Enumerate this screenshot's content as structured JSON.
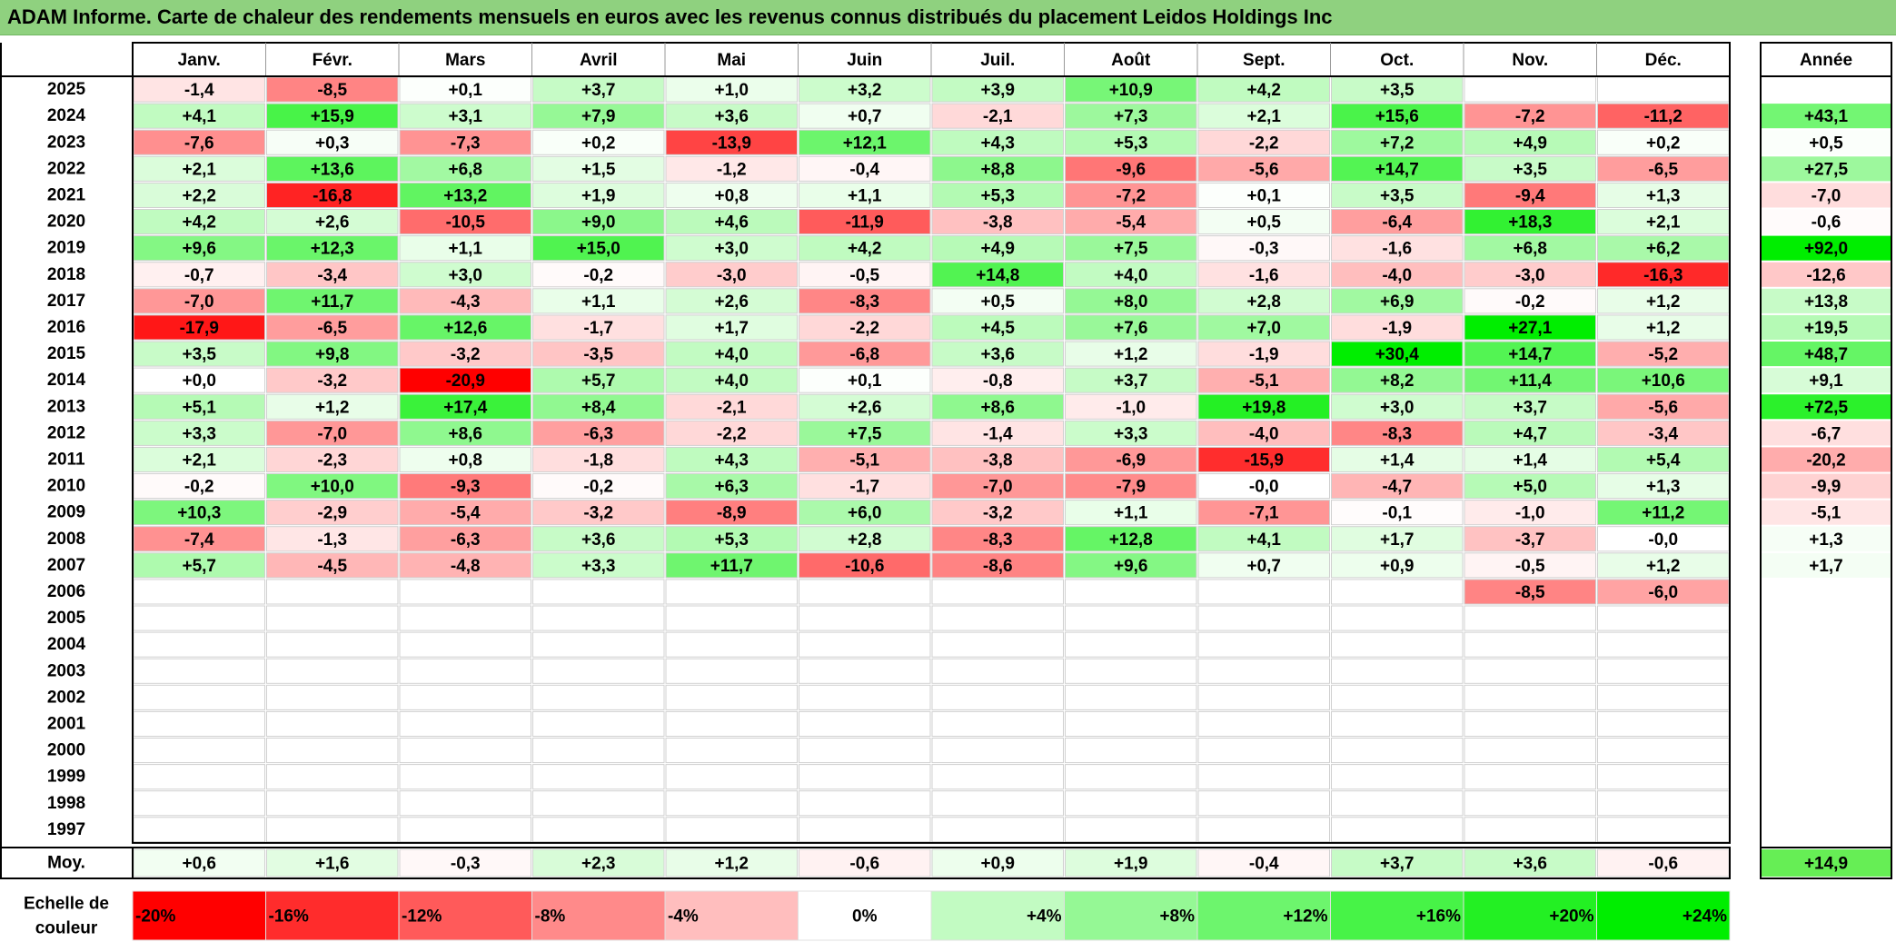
{
  "title": "ADAM Informe. Carte de chaleur des rendements mensuels en euros avec les revenus connus distribués du placement Leidos Holdings Inc",
  "chart_data": {
    "type": "heatmap",
    "months": [
      "Janv.",
      "Févr.",
      "Mars",
      "Avril",
      "Mai",
      "Juin",
      "Juil.",
      "Août",
      "Sept.",
      "Oct.",
      "Nov.",
      "Déc."
    ],
    "year_header": "Année",
    "rows": [
      {
        "year": "2025",
        "values": [
          "-1,4",
          "-8,5",
          "+0,1",
          "+3,7",
          "+1,0",
          "+3,2",
          "+3,9",
          "+10,9",
          "+4,2",
          "+3,5",
          "",
          ""
        ],
        "annual": ""
      },
      {
        "year": "2024",
        "values": [
          "+4,1",
          "+15,9",
          "+3,1",
          "+7,9",
          "+3,6",
          "+0,7",
          "-2,1",
          "+7,3",
          "+2,1",
          "+15,6",
          "-7,2",
          "-11,2"
        ],
        "annual": "+43,1"
      },
      {
        "year": "2023",
        "values": [
          "-7,6",
          "+0,3",
          "-7,3",
          "+0,2",
          "-13,9",
          "+12,1",
          "+4,3",
          "+5,3",
          "-2,2",
          "+7,2",
          "+4,9",
          "+0,2"
        ],
        "annual": "+0,5"
      },
      {
        "year": "2022",
        "values": [
          "+2,1",
          "+13,6",
          "+6,8",
          "+1,5",
          "-1,2",
          "-0,4",
          "+8,8",
          "-9,6",
          "-5,6",
          "+14,7",
          "+3,5",
          "-6,5"
        ],
        "annual": "+27,5"
      },
      {
        "year": "2021",
        "values": [
          "+2,2",
          "-16,8",
          "+13,2",
          "+1,9",
          "+0,8",
          "+1,1",
          "+5,3",
          "-7,2",
          "+0,1",
          "+3,5",
          "-9,4",
          "+1,3"
        ],
        "annual": "-7,0"
      },
      {
        "year": "2020",
        "values": [
          "+4,2",
          "+2,6",
          "-10,5",
          "+9,0",
          "+4,6",
          "-11,9",
          "-3,8",
          "-5,4",
          "+0,5",
          "-6,4",
          "+18,3",
          "+2,1"
        ],
        "annual": "-0,6"
      },
      {
        "year": "2019",
        "values": [
          "+9,6",
          "+12,3",
          "+1,1",
          "+15,0",
          "+3,0",
          "+4,2",
          "+4,9",
          "+7,5",
          "-0,3",
          "-1,6",
          "+6,8",
          "+6,2"
        ],
        "annual": "+92,0"
      },
      {
        "year": "2018",
        "values": [
          "-0,7",
          "-3,4",
          "+3,0",
          "-0,2",
          "-3,0",
          "-0,5",
          "+14,8",
          "+4,0",
          "-1,6",
          "-4,0",
          "-3,0",
          "-16,3"
        ],
        "annual": "-12,6"
      },
      {
        "year": "2017",
        "values": [
          "-7,0",
          "+11,7",
          "-4,3",
          "+1,1",
          "+2,6",
          "-8,3",
          "+0,5",
          "+8,0",
          "+2,8",
          "+6,9",
          "-0,2",
          "+1,2"
        ],
        "annual": "+13,8"
      },
      {
        "year": "2016",
        "values": [
          "-17,9",
          "-6,5",
          "+12,6",
          "-1,7",
          "+1,7",
          "-2,2",
          "+4,5",
          "+7,6",
          "+7,0",
          "-1,9",
          "+27,1",
          "+1,2"
        ],
        "annual": "+19,5"
      },
      {
        "year": "2015",
        "values": [
          "+3,5",
          "+9,8",
          "-3,2",
          "-3,5",
          "+4,0",
          "-6,8",
          "+3,6",
          "+1,2",
          "-1,9",
          "+30,4",
          "+14,7",
          "-5,2"
        ],
        "annual": "+48,7"
      },
      {
        "year": "2014",
        "values": [
          "+0,0",
          "-3,2",
          "-20,9",
          "+5,7",
          "+4,0",
          "+0,1",
          "-0,8",
          "+3,7",
          "-5,1",
          "+8,2",
          "+11,4",
          "+10,6"
        ],
        "annual": "+9,1"
      },
      {
        "year": "2013",
        "values": [
          "+5,1",
          "+1,2",
          "+17,4",
          "+8,4",
          "-2,1",
          "+2,6",
          "+8,6",
          "-1,0",
          "+19,8",
          "+3,0",
          "+3,7",
          "-5,6"
        ],
        "annual": "+72,5"
      },
      {
        "year": "2012",
        "values": [
          "+3,3",
          "-7,0",
          "+8,6",
          "-6,3",
          "-2,2",
          "+7,5",
          "-1,4",
          "+3,3",
          "-4,0",
          "-8,3",
          "+4,7",
          "-3,4"
        ],
        "annual": "-6,7"
      },
      {
        "year": "2011",
        "values": [
          "+2,1",
          "-2,3",
          "+0,8",
          "-1,8",
          "+4,3",
          "-5,1",
          "-3,8",
          "-6,9",
          "-15,9",
          "+1,4",
          "+1,4",
          "+5,4"
        ],
        "annual": "-20,2"
      },
      {
        "year": "2010",
        "values": [
          "-0,2",
          "+10,0",
          "-9,3",
          "-0,2",
          "+6,3",
          "-1,7",
          "-7,0",
          "-7,9",
          "-0,0",
          "-4,7",
          "+5,0",
          "+1,3"
        ],
        "annual": "-9,9"
      },
      {
        "year": "2009",
        "values": [
          "+10,3",
          "-2,9",
          "-5,4",
          "-3,2",
          "-8,9",
          "+6,0",
          "-3,2",
          "+1,1",
          "-7,1",
          "-0,1",
          "-1,0",
          "+11,2"
        ],
        "annual": "-5,1"
      },
      {
        "year": "2008",
        "values": [
          "-7,4",
          "-1,3",
          "-6,3",
          "+3,6",
          "+5,3",
          "+2,8",
          "-8,3",
          "+12,8",
          "+4,1",
          "+1,7",
          "-3,7",
          "-0,0"
        ],
        "annual": "+1,3"
      },
      {
        "year": "2007",
        "values": [
          "+5,7",
          "-4,5",
          "-4,8",
          "+3,3",
          "+11,7",
          "-10,6",
          "-8,6",
          "+9,6",
          "+0,7",
          "+0,9",
          "-0,5",
          "+1,2"
        ],
        "annual": "+1,7"
      },
      {
        "year": "2006",
        "values": [
          "",
          "",
          "",
          "",
          "",
          "",
          "",
          "",
          "",
          "",
          "-8,5",
          "-6,0"
        ],
        "annual": ""
      },
      {
        "year": "2005",
        "values": [
          "",
          "",
          "",
          "",
          "",
          "",
          "",
          "",
          "",
          "",
          "",
          ""
        ],
        "annual": ""
      },
      {
        "year": "2004",
        "values": [
          "",
          "",
          "",
          "",
          "",
          "",
          "",
          "",
          "",
          "",
          "",
          ""
        ],
        "annual": ""
      },
      {
        "year": "2003",
        "values": [
          "",
          "",
          "",
          "",
          "",
          "",
          "",
          "",
          "",
          "",
          "",
          ""
        ],
        "annual": ""
      },
      {
        "year": "2002",
        "values": [
          "",
          "",
          "",
          "",
          "",
          "",
          "",
          "",
          "",
          "",
          "",
          ""
        ],
        "annual": ""
      },
      {
        "year": "2001",
        "values": [
          "",
          "",
          "",
          "",
          "",
          "",
          "",
          "",
          "",
          "",
          "",
          ""
        ],
        "annual": ""
      },
      {
        "year": "2000",
        "values": [
          "",
          "",
          "",
          "",
          "",
          "",
          "",
          "",
          "",
          "",
          "",
          ""
        ],
        "annual": ""
      },
      {
        "year": "1999",
        "values": [
          "",
          "",
          "",
          "",
          "",
          "",
          "",
          "",
          "",
          "",
          "",
          ""
        ],
        "annual": ""
      },
      {
        "year": "1998",
        "values": [
          "",
          "",
          "",
          "",
          "",
          "",
          "",
          "",
          "",
          "",
          "",
          ""
        ],
        "annual": ""
      },
      {
        "year": "1997",
        "values": [
          "",
          "",
          "",
          "",
          "",
          "",
          "",
          "",
          "",
          "",
          "",
          ""
        ],
        "annual": ""
      }
    ],
    "average": {
      "label": "Moy.",
      "values": [
        "+0,6",
        "+1,6",
        "-0,3",
        "+2,3",
        "+1,2",
        "-0,6",
        "+0,9",
        "+1,9",
        "-0,4",
        "+3,7",
        "+3,6",
        "-0,6"
      ],
      "annual": "+14,9"
    },
    "scale": {
      "label_line1": "Echelle de",
      "label_line2": "couleur",
      "steps": [
        {
          "text": "-20%",
          "value": -20
        },
        {
          "text": "-16%",
          "value": -16
        },
        {
          "text": "-12%",
          "value": -12
        },
        {
          "text": "-8%",
          "value": -8
        },
        {
          "text": "-4%",
          "value": -4
        },
        {
          "text": "0%",
          "value": 0
        },
        {
          "text": "+4%",
          "value": 4
        },
        {
          "text": "+8%",
          "value": 8
        },
        {
          "text": "+12%",
          "value": 12
        },
        {
          "text": "+16%",
          "value": 16
        },
        {
          "text": "+20%",
          "value": 20
        },
        {
          "text": "+24%",
          "value": 24
        }
      ]
    },
    "color_neg_max": "#ff0000",
    "color_pos_max": "#00ee00",
    "color_zero": "#ffffff"
  }
}
